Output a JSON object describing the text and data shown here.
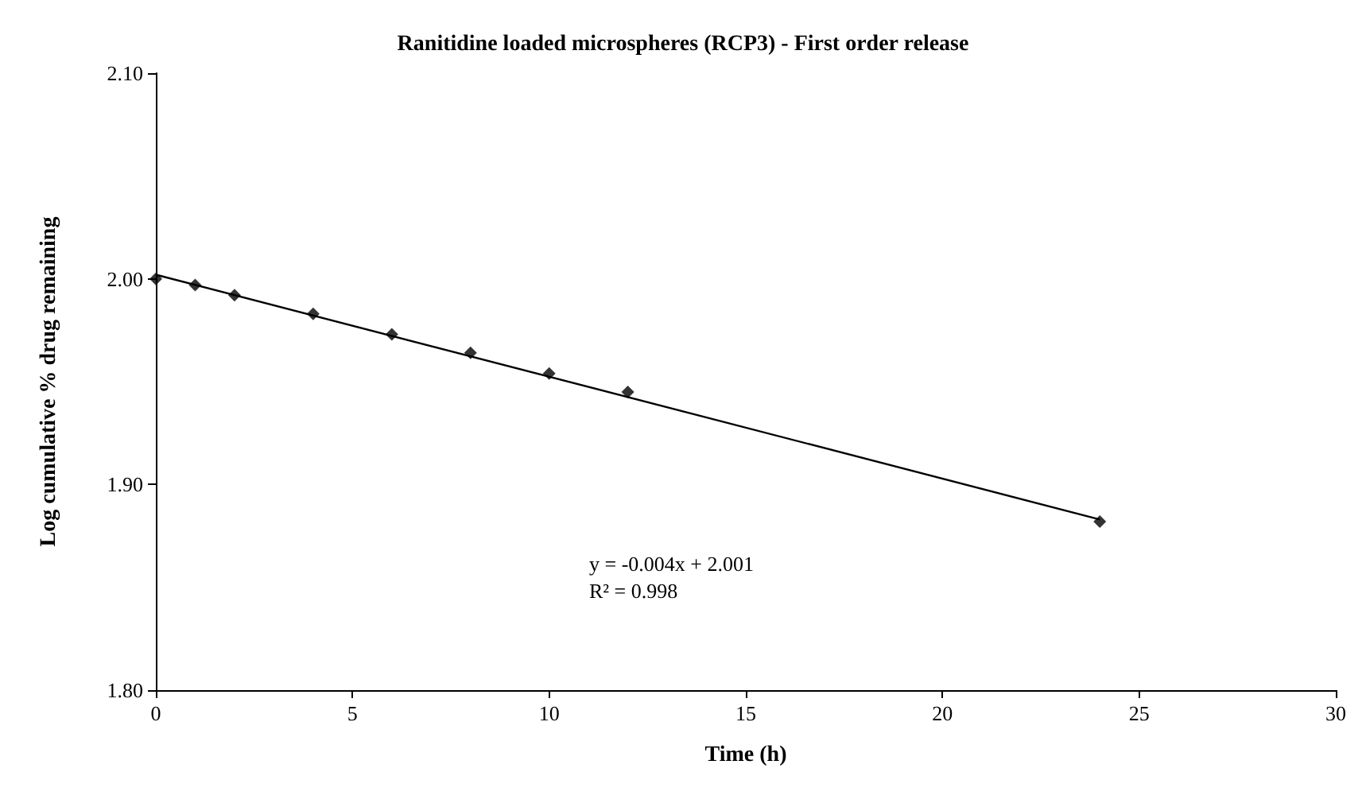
{
  "chart_data": {
    "type": "scatter",
    "title": "Ranitidine loaded microspheres (RCP3) - First order release",
    "xlabel": "Time (h)",
    "ylabel": "Log cumulative % drug remaining",
    "x": [
      0,
      1,
      2,
      4,
      6,
      8,
      10,
      12,
      24
    ],
    "series": [
      {
        "color": "#000000",
        "marker": "diamond",
        "values": [
          2.0,
          1.997,
          1.992,
          1.983,
          1.973,
          1.964,
          1.954,
          1.945,
          1.882
        ]
      },
      {
        "type": "line",
        "color": "#000000",
        "marker": "none",
        "x": [
          0,
          24
        ],
        "values": [
          2.002,
          1.883
        ]
      }
    ],
    "xlim": [
      0,
      30
    ],
    "xticks": [
      0,
      5,
      10,
      15,
      20,
      25,
      30
    ],
    "ylim": [
      1.8,
      2.1
    ],
    "yticks": [
      {
        "value": 1.8,
        "label": "1.80"
      },
      {
        "value": 1.9,
        "label": "1.90"
      },
      {
        "value": 2.0,
        "label": "2.00"
      },
      {
        "value": 2.1,
        "label": "2.10"
      }
    ],
    "annotations": [
      "y = -0.004x + 2.001",
      "R² = 0.998"
    ],
    "grid": false
  }
}
